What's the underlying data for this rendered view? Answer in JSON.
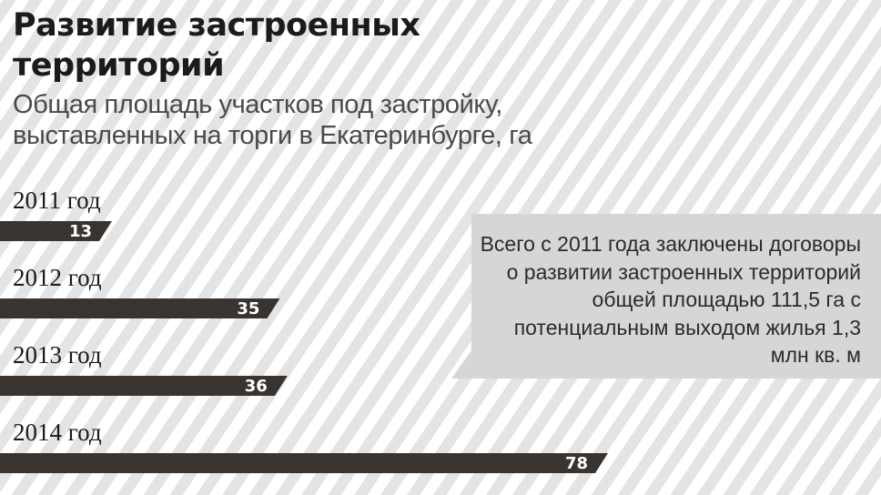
{
  "header": {
    "title": "Развитие застроенных территорий",
    "subtitle": "Общая площадь участков под застройку, выставленных на торги в Екатеринбурге, га"
  },
  "note": {
    "text": "Всего с 2011 года заключены договоры о развитии застроенных территорий общей площадью 111,5 га с потенциальным выходом жилья 1,3 млн кв. м"
  },
  "colors": {
    "bar": "#3a3430",
    "note_background": "#d6d6d6",
    "stripes": "#e4e4e4"
  },
  "chart_data": {
    "type": "bar",
    "orientation": "horizontal",
    "title": "Развитие застроенных территорий",
    "subtitle": "Общая площадь участков под застройку, выставленных на торги в Екатеринбурге, га",
    "categories": [
      "2011 год",
      "2012 год",
      "2013 год",
      "2014 год"
    ],
    "values": [
      13,
      35,
      36,
      78
    ],
    "data_labels": [
      "13",
      "35",
      "36",
      "78"
    ],
    "xlim": [
      0,
      78
    ],
    "grid": false,
    "legend": "none"
  }
}
